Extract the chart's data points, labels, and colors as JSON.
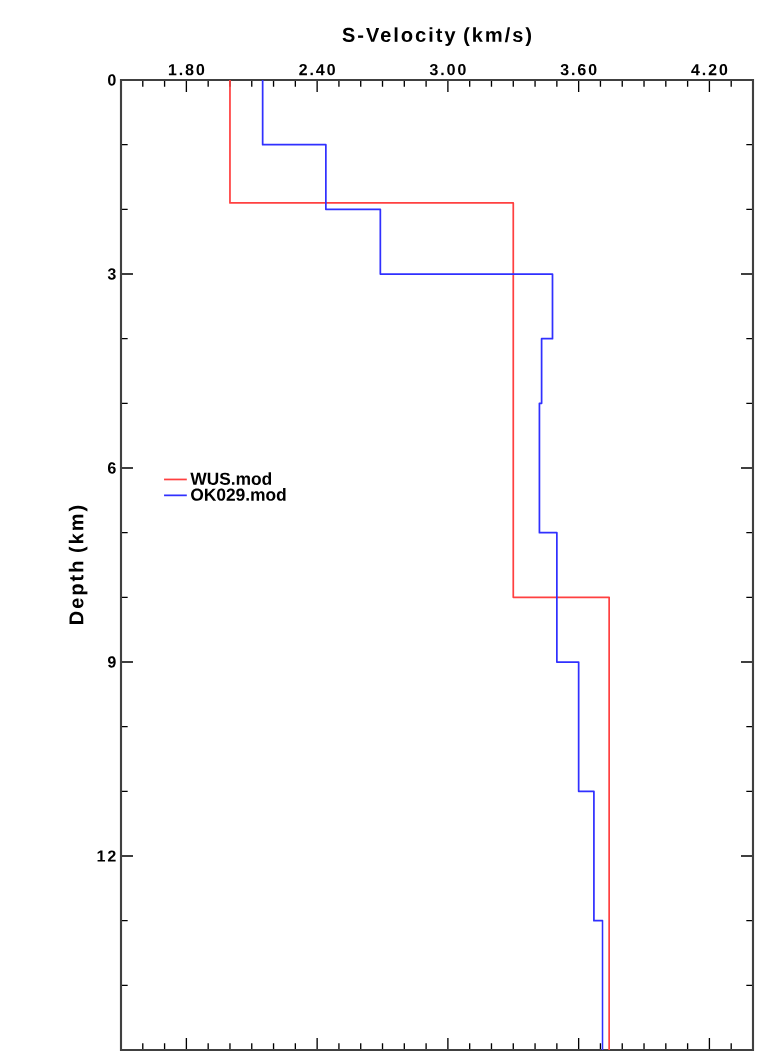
{
  "chart_data": {
    "type": "line",
    "xlabel": "S-Velocity (km/s)",
    "ylabel": "Depth (km)",
    "xlim": [
      1.5,
      4.4
    ],
    "ylim": [
      15,
      0
    ],
    "xticks": [
      {
        "value": 1.6,
        "label": null
      },
      {
        "value": 1.7,
        "label": null
      },
      {
        "value": 1.8,
        "label": "1.80"
      },
      {
        "value": 1.9,
        "label": null
      },
      {
        "value": 2.0,
        "label": null
      },
      {
        "value": 2.1,
        "label": null
      },
      {
        "value": 2.2,
        "label": null
      },
      {
        "value": 2.3,
        "label": null
      },
      {
        "value": 2.4,
        "label": "2.40"
      },
      {
        "value": 2.5,
        "label": null
      },
      {
        "value": 2.6,
        "label": null
      },
      {
        "value": 2.7,
        "label": null
      },
      {
        "value": 2.8,
        "label": null
      },
      {
        "value": 2.9,
        "label": null
      },
      {
        "value": 3.0,
        "label": "3.00"
      },
      {
        "value": 3.1,
        "label": null
      },
      {
        "value": 3.2,
        "label": null
      },
      {
        "value": 3.3,
        "label": null
      },
      {
        "value": 3.4,
        "label": null
      },
      {
        "value": 3.5,
        "label": null
      },
      {
        "value": 3.6,
        "label": "3.60"
      },
      {
        "value": 3.7,
        "label": null
      },
      {
        "value": 3.8,
        "label": null
      },
      {
        "value": 3.9,
        "label": null
      },
      {
        "value": 4.0,
        "label": null
      },
      {
        "value": 4.1,
        "label": null
      },
      {
        "value": 4.2,
        "label": "4.20"
      },
      {
        "value": 4.3,
        "label": null
      }
    ],
    "yticks": [
      0,
      {
        "value": 1,
        "label": null
      },
      {
        "value": 2,
        "label": null
      },
      3,
      {
        "value": 4,
        "label": null
      },
      {
        "value": 5,
        "label": null
      },
      6,
      {
        "value": 7,
        "label": null
      },
      {
        "value": 8,
        "label": null
      },
      9,
      {
        "value": 10,
        "label": null
      },
      {
        "value": 11,
        "label": null
      },
      12,
      {
        "value": 13,
        "label": null
      },
      {
        "value": 14,
        "label": null
      }
    ],
    "legend": "left",
    "grid": false,
    "marker": "none",
    "line_style": "solid",
    "series": [
      {
        "name": "WUS.mod",
        "color": "#ff4040",
        "x": [
          2.0,
          2.0,
          3.3,
          3.3,
          3.74,
          3.74
        ],
        "values": [
          0,
          1.9,
          1.9,
          8,
          8,
          15
        ]
      },
      {
        "name": "OK029.mod",
        "color": "#3030ff",
        "x": [
          2.15,
          2.15,
          2.44,
          2.44,
          2.69,
          2.69,
          3.48,
          3.48,
          3.43,
          3.43,
          3.42,
          3.42,
          3.5,
          3.5,
          3.6,
          3.6,
          3.67,
          3.67,
          3.71,
          3.71
        ],
        "values": [
          0,
          1,
          1,
          2,
          2,
          3,
          3,
          4,
          4,
          5,
          5,
          7,
          7,
          9,
          9,
          11,
          11,
          13,
          13,
          15
        ]
      }
    ]
  }
}
